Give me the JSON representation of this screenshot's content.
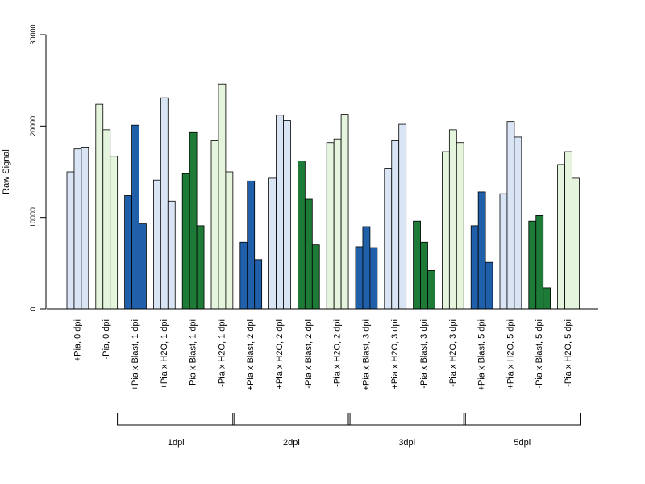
{
  "chart_data": {
    "type": "bar",
    "title": "",
    "xlabel": "",
    "ylabel": "Raw Signal",
    "ylim": [
      0,
      30000
    ],
    "yticks": [
      0,
      10000,
      20000,
      30000
    ],
    "yticklabels": [
      "0",
      "10000",
      "20000",
      "30000"
    ],
    "categories": [
      {
        "label": "+Pia, 0 dpi",
        "values": [
          15000,
          17500,
          17700
        ],
        "color": "#d9e5f5"
      },
      {
        "label": "-Pia, 0 dpi",
        "values": [
          22400,
          19600,
          16700
        ],
        "color": "#e5f5dd"
      },
      {
        "label": "+Pia x Blast, 1 dpi",
        "values": [
          12400,
          20100,
          9300
        ],
        "color": "#2060aa"
      },
      {
        "label": "+Pia x H2O, 1 dpi",
        "values": [
          14100,
          23100,
          11800
        ],
        "color": "#d9e5f5"
      },
      {
        "label": "-Pia x Blast, 1 dpi",
        "values": [
          14800,
          19300,
          9100
        ],
        "color": "#1e7a37"
      },
      {
        "label": "-Pia x H2O, 1 dpi",
        "values": [
          18400,
          24600,
          15000
        ],
        "color": "#e5f5dd"
      },
      {
        "label": "+Pia x Blast, 2 dpi",
        "values": [
          7300,
          14000,
          5400
        ],
        "color": "#2060aa"
      },
      {
        "label": "+Pia x H2O, 2 dpi",
        "values": [
          14300,
          21200,
          20600
        ],
        "color": "#d9e5f5"
      },
      {
        "label": "-Pia x Blast, 2 dpi",
        "values": [
          16200,
          12000,
          7000
        ],
        "color": "#1e7a37"
      },
      {
        "label": "-Pia x H2O, 2 dpi",
        "values": [
          18200,
          18600,
          21300
        ],
        "color": "#e5f5dd"
      },
      {
        "label": "+Pia x Blast, 3 dpi",
        "values": [
          6800,
          9000,
          6700
        ],
        "color": "#2060aa"
      },
      {
        "label": "+Pia x H2O, 3 dpi",
        "values": [
          15400,
          18400,
          20200
        ],
        "color": "#d9e5f5"
      },
      {
        "label": "-Pia x Blast, 3 dpi",
        "values": [
          9600,
          7300,
          4200
        ],
        "color": "#1e7a37"
      },
      {
        "label": "-Pia x H2O, 3 dpi",
        "values": [
          17200,
          19600,
          18200
        ],
        "color": "#e5f5dd"
      },
      {
        "label": "+Pia x Blast, 5 dpi",
        "values": [
          9100,
          12800,
          5100
        ],
        "color": "#2060aa"
      },
      {
        "label": "+Pia x H2O, 5 dpi",
        "values": [
          12600,
          20500,
          18800
        ],
        "color": "#d9e5f5"
      },
      {
        "label": "-Pia x Blast, 5 dpi",
        "values": [
          9600,
          10200,
          2300
        ],
        "color": "#1e7a37"
      },
      {
        "label": "-Pia x H2O, 5 dpi",
        "values": [
          15800,
          17200,
          14300
        ],
        "color": "#e5f5dd"
      }
    ],
    "groups": [
      {
        "label": "1dpi",
        "first": 2,
        "last": 5
      },
      {
        "label": "2dpi",
        "first": 6,
        "last": 9
      },
      {
        "label": "3dpi",
        "first": 10,
        "last": 13
      },
      {
        "label": "5dpi",
        "first": 14,
        "last": 17
      }
    ],
    "grid": false,
    "legend": "none"
  }
}
